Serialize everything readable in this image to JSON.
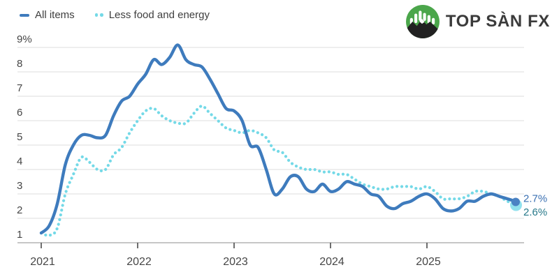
{
  "legend": {
    "items": [
      {
        "label": "All items",
        "color": "#3E7BBD",
        "style": "solid"
      },
      {
        "label": "Less food and energy",
        "color": "#74D9E7",
        "style": "dotted"
      }
    ]
  },
  "brand": {
    "name": "TOP SÀN FX",
    "icon": "mountain-chart-logo",
    "colors": {
      "circle_green": "#4BA64B",
      "mountain_dark": "#212121",
      "bars_white": "#FFFFFF",
      "text": "#3B3B3B"
    }
  },
  "chart_data": {
    "type": "line",
    "frequency": "monthly",
    "x_start": "2021-01",
    "x_end": "2025-12",
    "x_tick_labels": [
      "2021",
      "2022",
      "2023",
      "2024",
      "2025"
    ],
    "y_tick_labels": [
      "9%",
      "8",
      "7",
      "6",
      "5",
      "4",
      "3",
      "2",
      "1"
    ],
    "y_tick_values": [
      9,
      8,
      7,
      6,
      5,
      4,
      3,
      2,
      1
    ],
    "ylim": [
      1,
      9
    ],
    "unit": "percent year-over-year",
    "grid": "horizontal",
    "legend_position": "top-left",
    "colors": {
      "gridline": "#E4E4E4",
      "axis": "#B3B3B3",
      "tick": "#4A4A4A",
      "label": "#464646"
    },
    "series": [
      {
        "name": "All items",
        "color": "#3E7BBD",
        "line_style": "solid",
        "end_label": "2.7%",
        "end_label_color": "#3A70B2",
        "end_dot_color": "#4A82C3",
        "values": [
          1.4,
          1.7,
          2.6,
          4.2,
          5.0,
          5.4,
          5.4,
          5.3,
          5.4,
          6.2,
          6.8,
          7.0,
          7.5,
          7.9,
          8.5,
          8.3,
          8.6,
          9.1,
          8.5,
          8.3,
          8.2,
          7.7,
          7.1,
          6.5,
          6.4,
          6.0,
          5.0,
          4.9,
          4.0,
          3.0,
          3.2,
          3.7,
          3.7,
          3.2,
          3.1,
          3.4,
          3.1,
          3.2,
          3.5,
          3.4,
          3.3,
          3.0,
          2.9,
          2.5,
          2.4,
          2.6,
          2.7,
          2.9,
          3.0,
          2.8,
          2.4,
          2.3,
          2.4,
          2.7,
          2.7,
          2.9,
          3.0,
          2.9,
          2.8,
          2.7
        ]
      },
      {
        "name": "Less food and energy",
        "color": "#74D9E7",
        "line_style": "dotted",
        "end_label": "2.6%",
        "end_label_color": "#27798A",
        "end_dot_color": "#7EDCEA",
        "values": [
          1.4,
          1.3,
          1.6,
          3.0,
          3.8,
          4.5,
          4.3,
          4.0,
          4.0,
          4.6,
          4.9,
          5.5,
          6.0,
          6.4,
          6.5,
          6.2,
          6.0,
          5.9,
          5.9,
          6.3,
          6.6,
          6.3,
          6.0,
          5.7,
          5.6,
          5.5,
          5.6,
          5.5,
          5.3,
          4.8,
          4.7,
          4.3,
          4.1,
          4.0,
          4.0,
          3.9,
          3.9,
          3.8,
          3.8,
          3.6,
          3.4,
          3.3,
          3.2,
          3.2,
          3.3,
          3.3,
          3.3,
          3.2,
          3.3,
          3.1,
          2.8,
          2.8,
          2.8,
          2.9,
          3.1,
          3.1,
          3.0,
          2.9,
          2.7,
          2.6
        ]
      }
    ]
  }
}
